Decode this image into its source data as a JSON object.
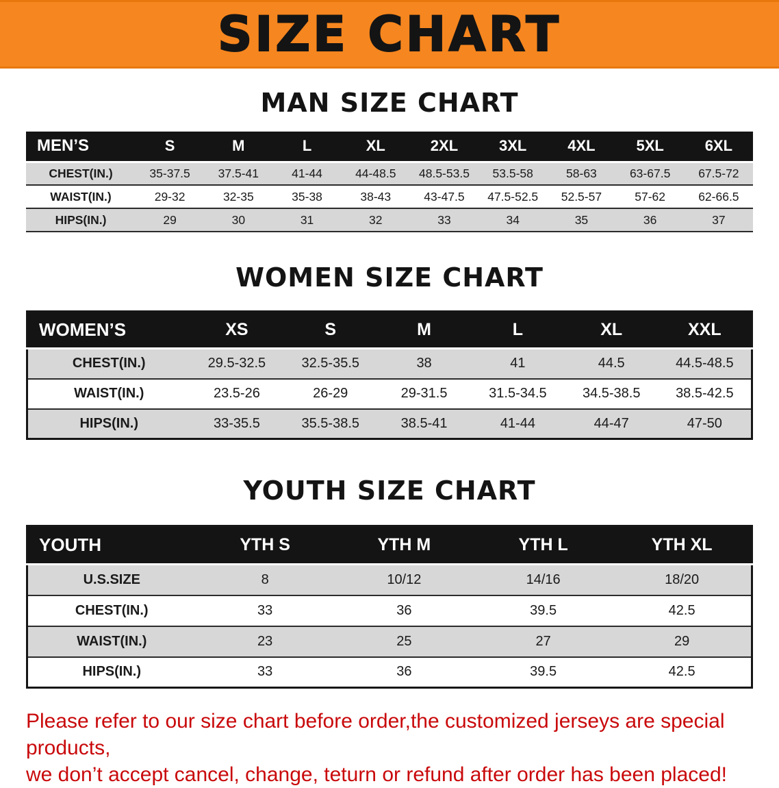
{
  "banner": {
    "title": "SIZE CHART"
  },
  "colors": {
    "banner_orange": "#F6861F",
    "header_black": "#141414",
    "row_gray": "#D7D7D7",
    "footer_red": "#C9090B"
  },
  "sections": {
    "men": {
      "heading": "MAN SIZE CHART",
      "table": {
        "title": "MEN’S",
        "columns": [
          "S",
          "M",
          "L",
          "XL",
          "2XL",
          "3XL",
          "4XL",
          "5XL",
          "6XL"
        ],
        "rows": [
          {
            "label": "CHEST(IN.)",
            "values": [
              "35-37.5",
              "37.5-41",
              "41-44",
              "44-48.5",
              "48.5-53.5",
              "53.5-58",
              "58-63",
              "63-67.5",
              "67.5-72"
            ]
          },
          {
            "label": "WAIST(IN.)",
            "values": [
              "29-32",
              "32-35",
              "35-38",
              "38-43",
              "43-47.5",
              "47.5-52.5",
              "52.5-57",
              "57-62",
              "62-66.5"
            ]
          },
          {
            "label": "HIPS(IN.)",
            "values": [
              "29",
              "30",
              "31",
              "32",
              "33",
              "34",
              "35",
              "36",
              "37"
            ]
          }
        ]
      }
    },
    "women": {
      "heading": "WOMEN SIZE CHART",
      "table": {
        "title": "WOMEN’S",
        "columns": [
          "XS",
          "S",
          "M",
          "L",
          "XL",
          "XXL"
        ],
        "rows": [
          {
            "label": "CHEST(IN.)",
            "values": [
              "29.5-32.5",
              "32.5-35.5",
              "38",
              "41",
              "44.5",
              "44.5-48.5"
            ]
          },
          {
            "label": "WAIST(IN.)",
            "values": [
              "23.5-26",
              "26-29",
              "29-31.5",
              "31.5-34.5",
              "34.5-38.5",
              "38.5-42.5"
            ]
          },
          {
            "label": "HIPS(IN.)",
            "values": [
              "33-35.5",
              "35.5-38.5",
              "38.5-41",
              "41-44",
              "44-47",
              "47-50"
            ]
          }
        ]
      }
    },
    "youth": {
      "heading": "YOUTH SIZE CHART",
      "table": {
        "title": "YOUTH",
        "columns": [
          "YTH S",
          "YTH M",
          "YTH L",
          "YTH XL"
        ],
        "rows": [
          {
            "label": "U.S.SIZE",
            "values": [
              "8",
              "10/12",
              "14/16",
              "18/20"
            ]
          },
          {
            "label": "CHEST(IN.)",
            "values": [
              "33",
              "36",
              "39.5",
              "42.5"
            ]
          },
          {
            "label": "WAIST(IN.)",
            "values": [
              "23",
              "25",
              "27",
              "29"
            ]
          },
          {
            "label": "HIPS(IN.)",
            "values": [
              "33",
              "36",
              "39.5",
              "42.5"
            ]
          }
        ]
      }
    }
  },
  "footer": {
    "line1": "Please refer to our size chart before order,the customized jerseys are special products,",
    "line2": "we don’t accept cancel, change, teturn or refund after order has been placed!"
  }
}
